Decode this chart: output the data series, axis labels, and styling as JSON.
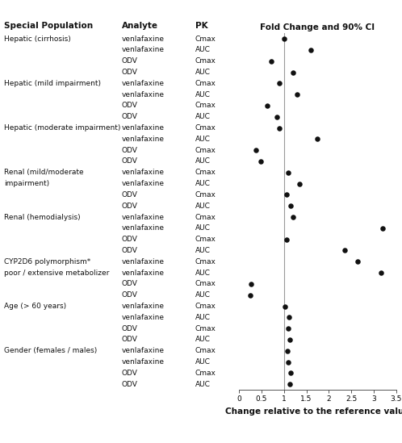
{
  "title": "Fold Change and 90% CI",
  "xlabel": "Change relative to the reference value",
  "rows": [
    {
      "group": "Hepatic (cirrhosis)",
      "analyte": "venlafaxine",
      "pk": "Cmax",
      "value": 1.0
    },
    {
      "group": "",
      "analyte": "venlafaxine",
      "pk": "AUC",
      "value": 1.6
    },
    {
      "group": "",
      "analyte": "ODV",
      "pk": "Cmax",
      "value": 0.72
    },
    {
      "group": "",
      "analyte": "ODV",
      "pk": "AUC",
      "value": 1.2
    },
    {
      "group": "Hepatic (mild impairment)",
      "analyte": "venlafaxine",
      "pk": "Cmax",
      "value": 0.9
    },
    {
      "group": "",
      "analyte": "venlafaxine",
      "pk": "AUC",
      "value": 1.3
    },
    {
      "group": "",
      "analyte": "ODV",
      "pk": "Cmax",
      "value": 0.62
    },
    {
      "group": "",
      "analyte": "ODV",
      "pk": "AUC",
      "value": 0.84
    },
    {
      "group": "Hepatic (moderate impairment)",
      "analyte": "venlafaxine",
      "pk": "Cmax",
      "value": 0.9
    },
    {
      "group": "",
      "analyte": "venlafaxine",
      "pk": "AUC",
      "value": 1.75
    },
    {
      "group": "",
      "analyte": "ODV",
      "pk": "Cmax",
      "value": 0.38
    },
    {
      "group": "",
      "analyte": "ODV",
      "pk": "AUC",
      "value": 0.48
    },
    {
      "group": "Renal (mild/moderate",
      "analyte": "venlafaxine",
      "pk": "Cmax",
      "value": 1.1
    },
    {
      "group": "impairment)",
      "analyte": "venlafaxine",
      "pk": "AUC",
      "value": 1.35
    },
    {
      "group": "",
      "analyte": "ODV",
      "pk": "Cmax",
      "value": 1.05
    },
    {
      "group": "",
      "analyte": "ODV",
      "pk": "AUC",
      "value": 1.15
    },
    {
      "group": "Renal (hemodialysis)",
      "analyte": "venlafaxine",
      "pk": "Cmax",
      "value": 1.2
    },
    {
      "group": "",
      "analyte": "venlafaxine",
      "pk": "AUC",
      "value": 3.2
    },
    {
      "group": "",
      "analyte": "ODV",
      "pk": "Cmax",
      "value": 1.05
    },
    {
      "group": "",
      "analyte": "ODV",
      "pk": "AUC",
      "value": 2.35
    },
    {
      "group": "CYP2D6 polymorphism*",
      "analyte": "venlafaxine",
      "pk": "Cmax",
      "value": 2.65
    },
    {
      "group": "poor / extensive metabolizer",
      "analyte": "venlafaxine",
      "pk": "AUC",
      "value": 3.17
    },
    {
      "group": "",
      "analyte": "ODV",
      "pk": "Cmax",
      "value": 0.27
    },
    {
      "group": "",
      "analyte": "ODV",
      "pk": "AUC",
      "value": 0.25
    },
    {
      "group": "Age (> 60 years)",
      "analyte": "venlafaxine",
      "pk": "Cmax",
      "value": 1.02
    },
    {
      "group": "",
      "analyte": "venlafaxine",
      "pk": "AUC",
      "value": 1.12
    },
    {
      "group": "",
      "analyte": "ODV",
      "pk": "Cmax",
      "value": 1.1
    },
    {
      "group": "",
      "analyte": "ODV",
      "pk": "AUC",
      "value": 1.13
    },
    {
      "group": "Gender (females / males)",
      "analyte": "venlafaxine",
      "pk": "Cmax",
      "value": 1.08
    },
    {
      "group": "",
      "analyte": "venlafaxine",
      "pk": "AUC",
      "value": 1.1
    },
    {
      "group": "",
      "analyte": "ODV",
      "pk": "Cmax",
      "value": 1.15
    },
    {
      "group": "",
      "analyte": "ODV",
      "pk": "AUC",
      "value": 1.13
    }
  ],
  "xlim": [
    0,
    3.5
  ],
  "xticks": [
    0,
    0.5,
    1.0,
    1.5,
    2.0,
    2.5,
    3.0,
    3.5
  ],
  "xticklabels": [
    "0",
    "0.5",
    "1",
    "1.5",
    "2",
    "2.5",
    "3",
    "3.5"
  ],
  "vline_x": 1.0,
  "dot_color": "#111111",
  "dot_size": 22,
  "bg_color": "#ffffff",
  "text_color": "#111111",
  "header_fontsize": 7.5,
  "row_fontsize": 6.5,
  "xlabel_fontsize": 7.5
}
